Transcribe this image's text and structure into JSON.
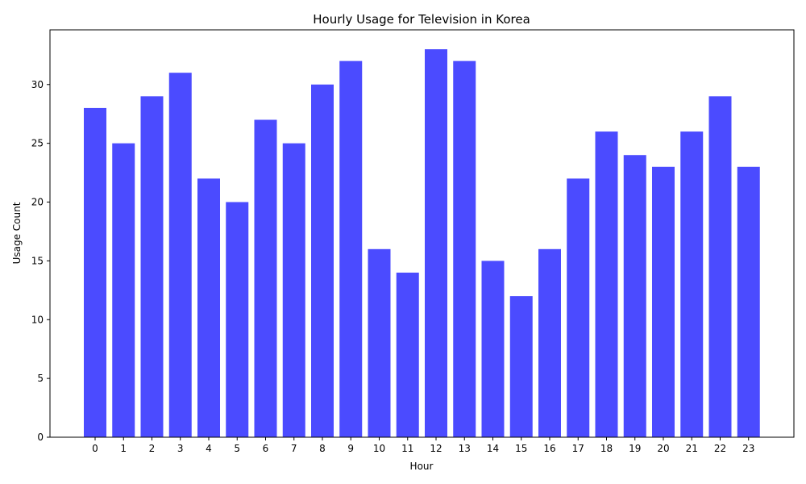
{
  "chart_data": {
    "type": "bar",
    "title": "Hourly Usage for Television in Korea",
    "xlabel": "Hour",
    "ylabel": "Usage Count",
    "categories": [
      "0",
      "1",
      "2",
      "3",
      "4",
      "5",
      "6",
      "7",
      "8",
      "9",
      "10",
      "11",
      "12",
      "13",
      "14",
      "15",
      "16",
      "17",
      "18",
      "19",
      "20",
      "21",
      "22",
      "23"
    ],
    "values": [
      28,
      25,
      29,
      31,
      22,
      20,
      27,
      25,
      30,
      32,
      16,
      14,
      33,
      32,
      15,
      12,
      16,
      22,
      26,
      24,
      23,
      26,
      29,
      23
    ],
    "ylim": [
      0,
      34.65
    ],
    "yticks": [
      0,
      5,
      10,
      15,
      20,
      25,
      30
    ],
    "grid": false,
    "legend": "none",
    "bar_color": "#4b4bff"
  }
}
